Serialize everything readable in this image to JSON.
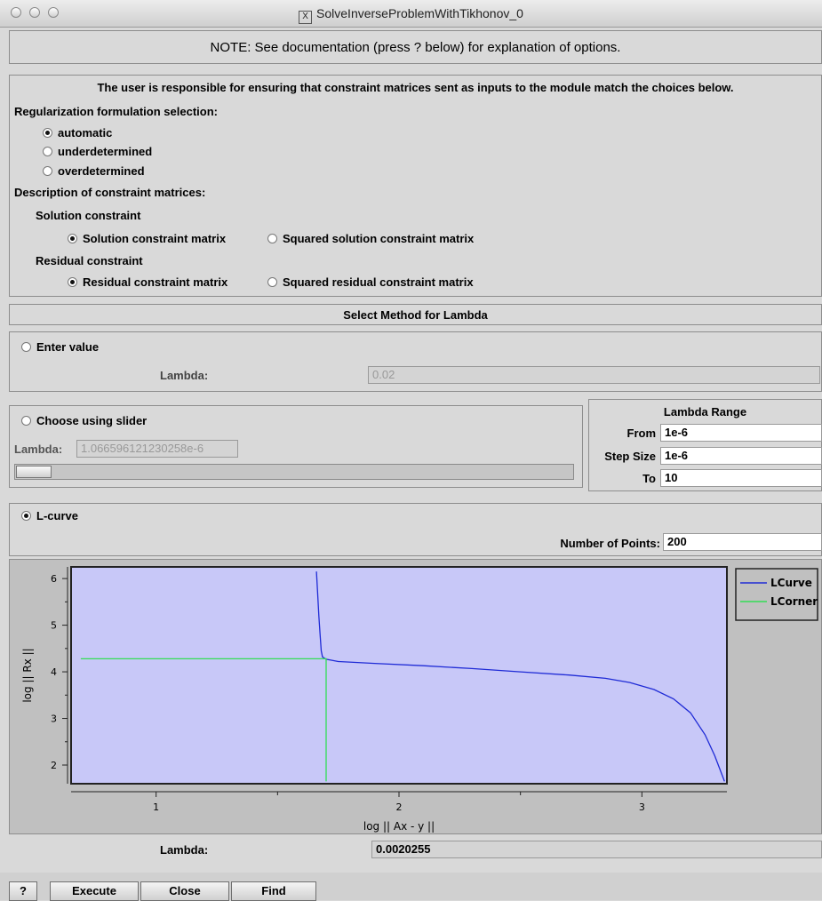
{
  "window": {
    "title": "SolveInverseProblemWithTikhonov_0"
  },
  "note": "NOTE: See documentation (press ? below) for explanation of options.",
  "constraints": {
    "responsibility": "The user is responsible for ensuring that constraint matrices sent as inputs to the module match the choices below.",
    "formulation_label": "Regularization formulation selection:",
    "formulation_options": [
      "automatic",
      "underdetermined",
      "overdetermined"
    ],
    "formulation_selected": 0,
    "description_label": "Description of constraint matrices:",
    "solution_label": "Solution constraint",
    "solution_options": [
      "Solution constraint matrix",
      "Squared solution constraint matrix"
    ],
    "solution_selected": 0,
    "residual_label": "Residual constraint",
    "residual_options": [
      "Residual constraint matrix",
      "Squared residual constraint matrix"
    ],
    "residual_selected": 0
  },
  "lambda_method": {
    "header": "Select Method for Lambda",
    "enter_value": {
      "label": "Enter value",
      "selected": false,
      "lambda_label": "Lambda:",
      "lambda_value": "0.02"
    },
    "slider": {
      "label": "Choose using slider",
      "selected": false,
      "lambda_label": "Lambda:",
      "lambda_value": "1.066596121230258e-6",
      "position": 0.02
    },
    "range": {
      "header": "Lambda Range",
      "from_label": "From",
      "from_value": "1e-6",
      "step_label": "Step Size",
      "step_value": "1e-6",
      "to_label": "To",
      "to_value": "10"
    },
    "lcurve": {
      "label": "L-curve",
      "selected": true,
      "num_points_label": "Number of Points:",
      "num_points_value": "200"
    }
  },
  "chart_data": {
    "type": "line",
    "xlabel": "log || Ax - y ||",
    "ylabel": "log || Rx ||",
    "xlim": [
      0.65,
      3.35
    ],
    "ylim": [
      1.6,
      6.25
    ],
    "xticks": [
      1,
      2,
      3
    ],
    "yticks": [
      2,
      3,
      4,
      5,
      6
    ],
    "legend_position": "top-right",
    "series": [
      {
        "name": "LCurve",
        "color": "#1f2bd6",
        "x": [
          1.66,
          1.665,
          1.67,
          1.675,
          1.68,
          1.685,
          1.7,
          1.75,
          1.9,
          2.1,
          2.3,
          2.5,
          2.7,
          2.85,
          2.95,
          3.05,
          3.13,
          3.2,
          3.26,
          3.3,
          3.34
        ],
        "y": [
          6.15,
          5.7,
          5.2,
          4.8,
          4.45,
          4.32,
          4.27,
          4.22,
          4.18,
          4.13,
          4.07,
          4.0,
          3.93,
          3.86,
          3.77,
          3.62,
          3.42,
          3.12,
          2.65,
          2.2,
          1.65
        ]
      },
      {
        "name": "LCorner",
        "color": "#33dd55",
        "x": [
          0.69,
          1.7,
          1.7
        ],
        "y": [
          4.28,
          4.28,
          1.65
        ]
      }
    ]
  },
  "result": {
    "lambda_label": "Lambda:",
    "lambda_value": "0.0020255"
  },
  "buttons": {
    "help": "?",
    "execute": "Execute",
    "close": "Close",
    "find": "Find"
  }
}
